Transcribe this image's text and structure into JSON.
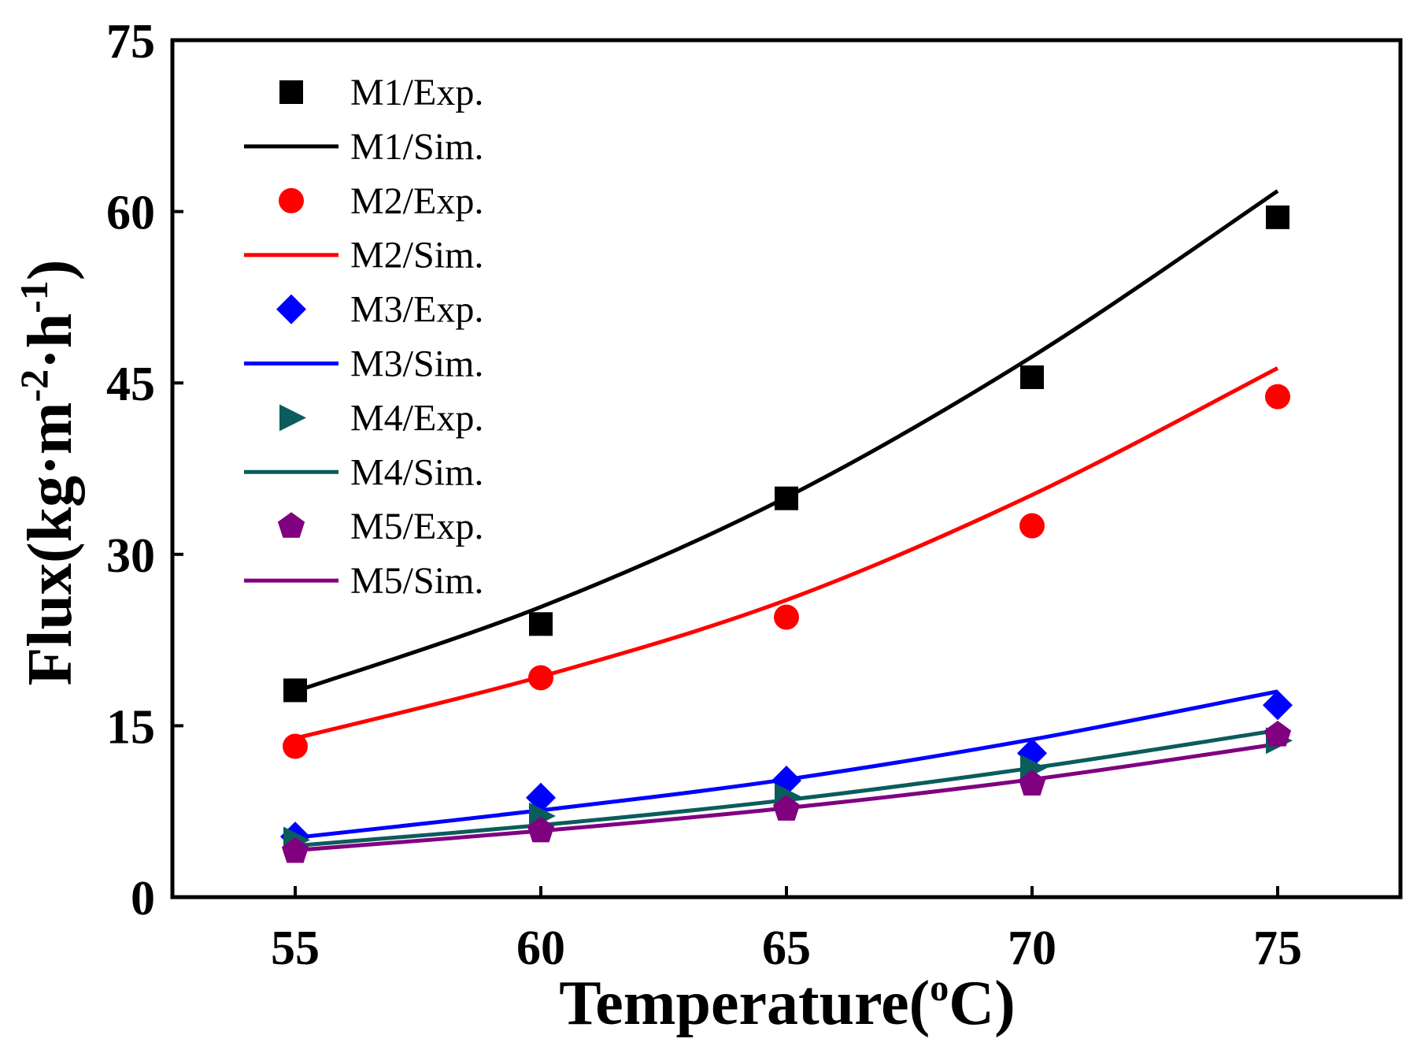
{
  "chart_data": {
    "type": "line",
    "title": "",
    "xlabel_parts": [
      "Temperature(",
      "o",
      "C)"
    ],
    "ylabel_parts": [
      "Flux(kg·m",
      "-2",
      "·h",
      "-1",
      ")"
    ],
    "xlim": [
      52.5,
      77.5
    ],
    "ylim": [
      0,
      75
    ],
    "xticks": [
      55,
      60,
      65,
      70,
      75
    ],
    "yticks": [
      0,
      15,
      30,
      45,
      60,
      75
    ],
    "grid": false,
    "legend_position": "top-left",
    "x": [
      55,
      60,
      65,
      70,
      75
    ],
    "series": [
      {
        "name": "M1/Exp.",
        "kind": "marker",
        "marker": "square",
        "color": "#000000",
        "values": [
          18.1,
          23.9,
          34.9,
          45.5,
          59.5
        ]
      },
      {
        "name": "M1/Sim.",
        "kind": "line",
        "color": "#000000",
        "values": [
          18.0,
          25.4,
          35.0,
          47.3,
          61.8
        ]
      },
      {
        "name": "M2/Exp.",
        "kind": "marker",
        "marker": "circle",
        "color": "#ff0000",
        "values": [
          13.2,
          19.2,
          24.5,
          32.5,
          43.8
        ]
      },
      {
        "name": "M2/Sim.",
        "kind": "line",
        "color": "#ff0000",
        "values": [
          13.9,
          19.3,
          26.0,
          35.2,
          46.3
        ]
      },
      {
        "name": "M3/Exp.",
        "kind": "marker",
        "marker": "diamond",
        "color": "#0000ff",
        "values": [
          5.3,
          8.7,
          10.2,
          12.6,
          16.8
        ]
      },
      {
        "name": "M3/Sim.",
        "kind": "line",
        "color": "#0000ff",
        "values": [
          5.2,
          7.6,
          10.3,
          13.8,
          18.0
        ]
      },
      {
        "name": "M4/Exp.",
        "kind": "marker",
        "marker": "triangle-right",
        "color": "#0b5c5c",
        "values": [
          5.0,
          7.1,
          8.8,
          11.3,
          13.7
        ]
      },
      {
        "name": "M4/Sim.",
        "kind": "line",
        "color": "#0b5c5c",
        "values": [
          4.5,
          6.3,
          8.5,
          11.3,
          14.6
        ]
      },
      {
        "name": "M5/Exp.",
        "kind": "marker",
        "marker": "pentagon",
        "color": "#800080",
        "values": [
          4.0,
          5.8,
          7.7,
          9.9,
          14.2
        ]
      },
      {
        "name": "M5/Sim.",
        "kind": "line",
        "color": "#800080",
        "values": [
          4.1,
          5.8,
          7.8,
          10.3,
          13.4
        ]
      }
    ]
  }
}
